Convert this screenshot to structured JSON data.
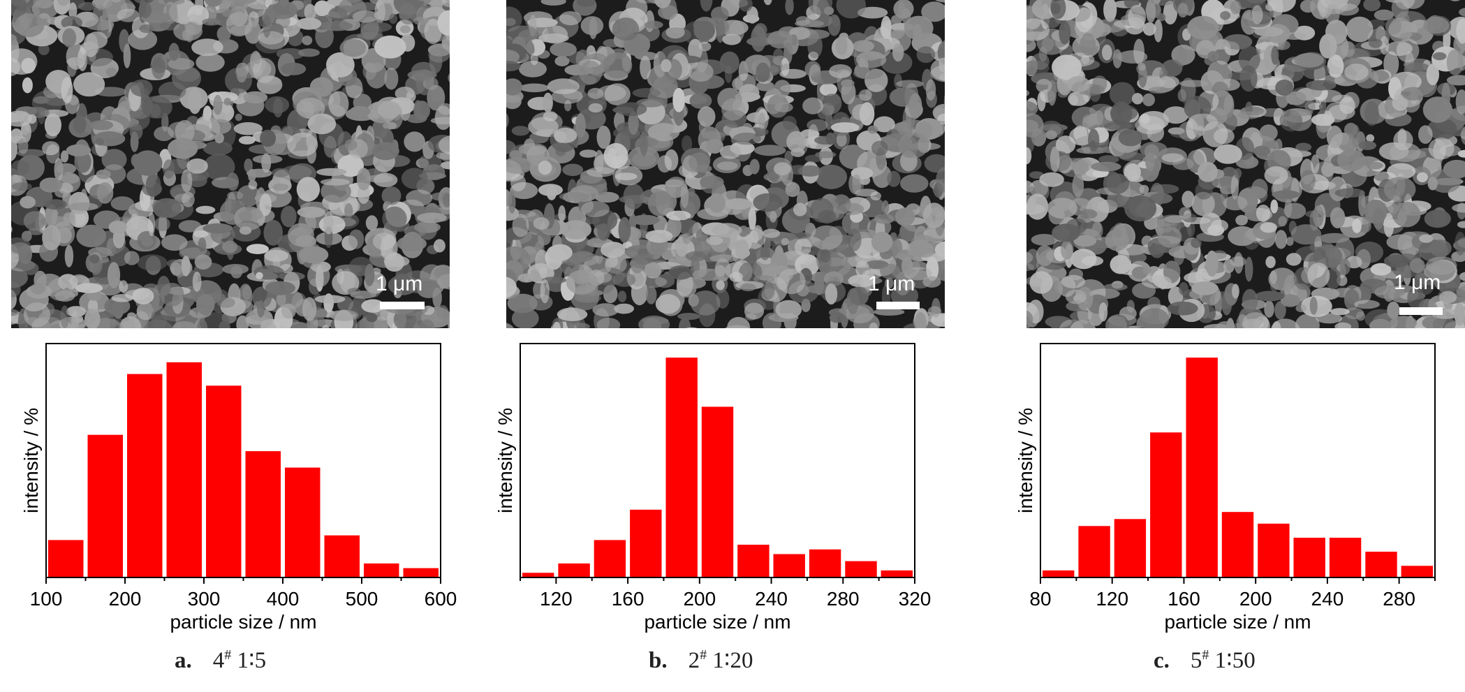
{
  "panels": [
    {
      "caption_letter": "a.",
      "caption_sample": "4",
      "caption_mark": "#",
      "caption_ratio": "1∶5",
      "scale_label": "1 μm"
    },
    {
      "caption_letter": "b.",
      "caption_sample": "2",
      "caption_mark": "#",
      "caption_ratio": "1∶20",
      "scale_label": "1 μm"
    },
    {
      "caption_letter": "c.",
      "caption_sample": "5",
      "caption_mark": "#",
      "caption_ratio": "1∶50",
      "scale_label": "1 μm"
    }
  ],
  "colors": {
    "bar": "#ff0000",
    "axis": "#000000"
  },
  "chart_data": [
    {
      "type": "bar",
      "xlabel": "particle size / nm",
      "ylabel": "intensity / %",
      "xlim": [
        100,
        600
      ],
      "xticks": [
        100,
        200,
        300,
        400,
        500,
        600
      ],
      "ylim": [
        0,
        100
      ],
      "bin_width": 50,
      "x": [
        125,
        175,
        225,
        275,
        325,
        375,
        425,
        475,
        525,
        575
      ],
      "values": [
        16,
        61,
        87,
        92,
        82,
        54,
        47,
        18,
        6,
        4
      ]
    },
    {
      "type": "bar",
      "xlabel": "particle size / nm",
      "ylabel": "intensity / %",
      "xlim": [
        100,
        320
      ],
      "xticks": [
        120,
        160,
        200,
        240,
        280,
        320
      ],
      "ylim": [
        0,
        100
      ],
      "bin_width": 20,
      "x": [
        110,
        130,
        150,
        170,
        190,
        210,
        230,
        250,
        270,
        290,
        310
      ],
      "values": [
        2,
        6,
        16,
        29,
        94,
        73,
        14,
        10,
        12,
        7,
        3
      ]
    },
    {
      "type": "bar",
      "xlabel": "particle size / nm",
      "ylabel": "intensity / %",
      "xlim": [
        80,
        300
      ],
      "xticks": [
        80,
        120,
        160,
        200,
        240,
        280
      ],
      "ylim": [
        0,
        100
      ],
      "bin_width": 20,
      "x": [
        90,
        110,
        130,
        150,
        170,
        190,
        210,
        230,
        250,
        270,
        290
      ],
      "values": [
        3,
        22,
        25,
        62,
        94,
        28,
        23,
        17,
        17,
        11,
        5
      ]
    }
  ]
}
